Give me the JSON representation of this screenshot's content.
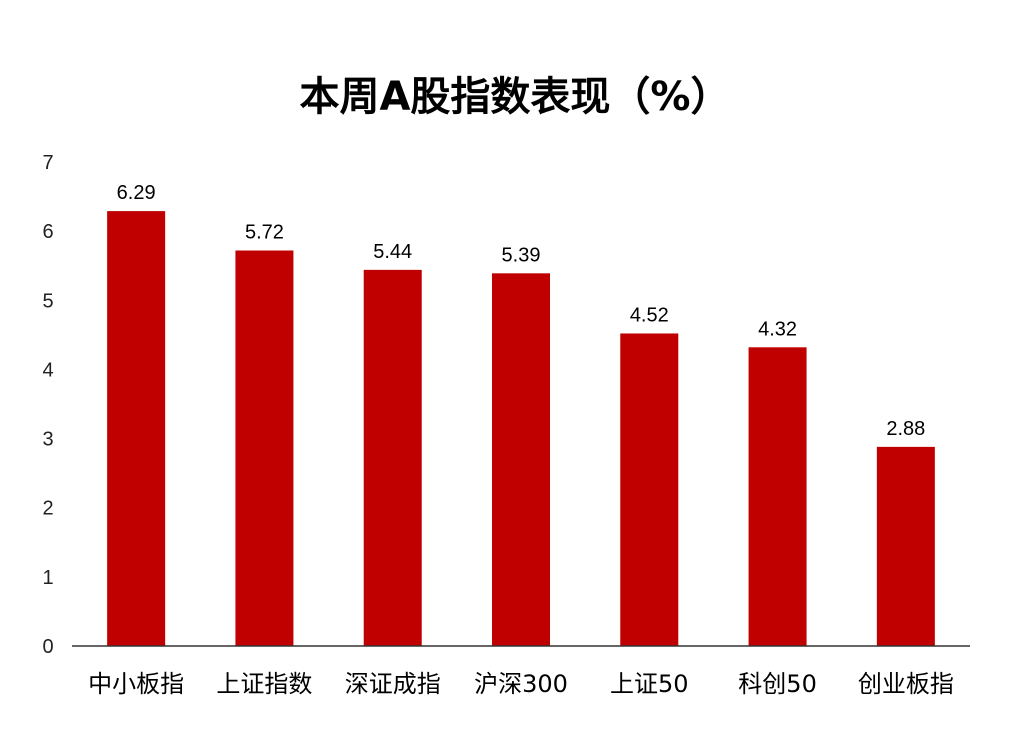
{
  "chart_data": {
    "type": "bar",
    "title": "本周A股指数表现（%）",
    "categories": [
      "中小板指",
      "上证指数",
      "深证成指",
      "沪深300",
      "上证50",
      "科创50",
      "创业板指"
    ],
    "values": [
      6.29,
      5.72,
      5.44,
      5.39,
      4.52,
      4.32,
      2.88
    ],
    "data_labels": [
      "6.29",
      "5.72",
      "5.44",
      "5.39",
      "4.52",
      "4.32",
      "2.88"
    ],
    "yticks": [
      "0",
      "1",
      "2",
      "3",
      "4",
      "5",
      "6",
      "7"
    ],
    "ylim": [
      0,
      7
    ],
    "grid": false,
    "legend": "none",
    "bar_color": "#C00000"
  }
}
